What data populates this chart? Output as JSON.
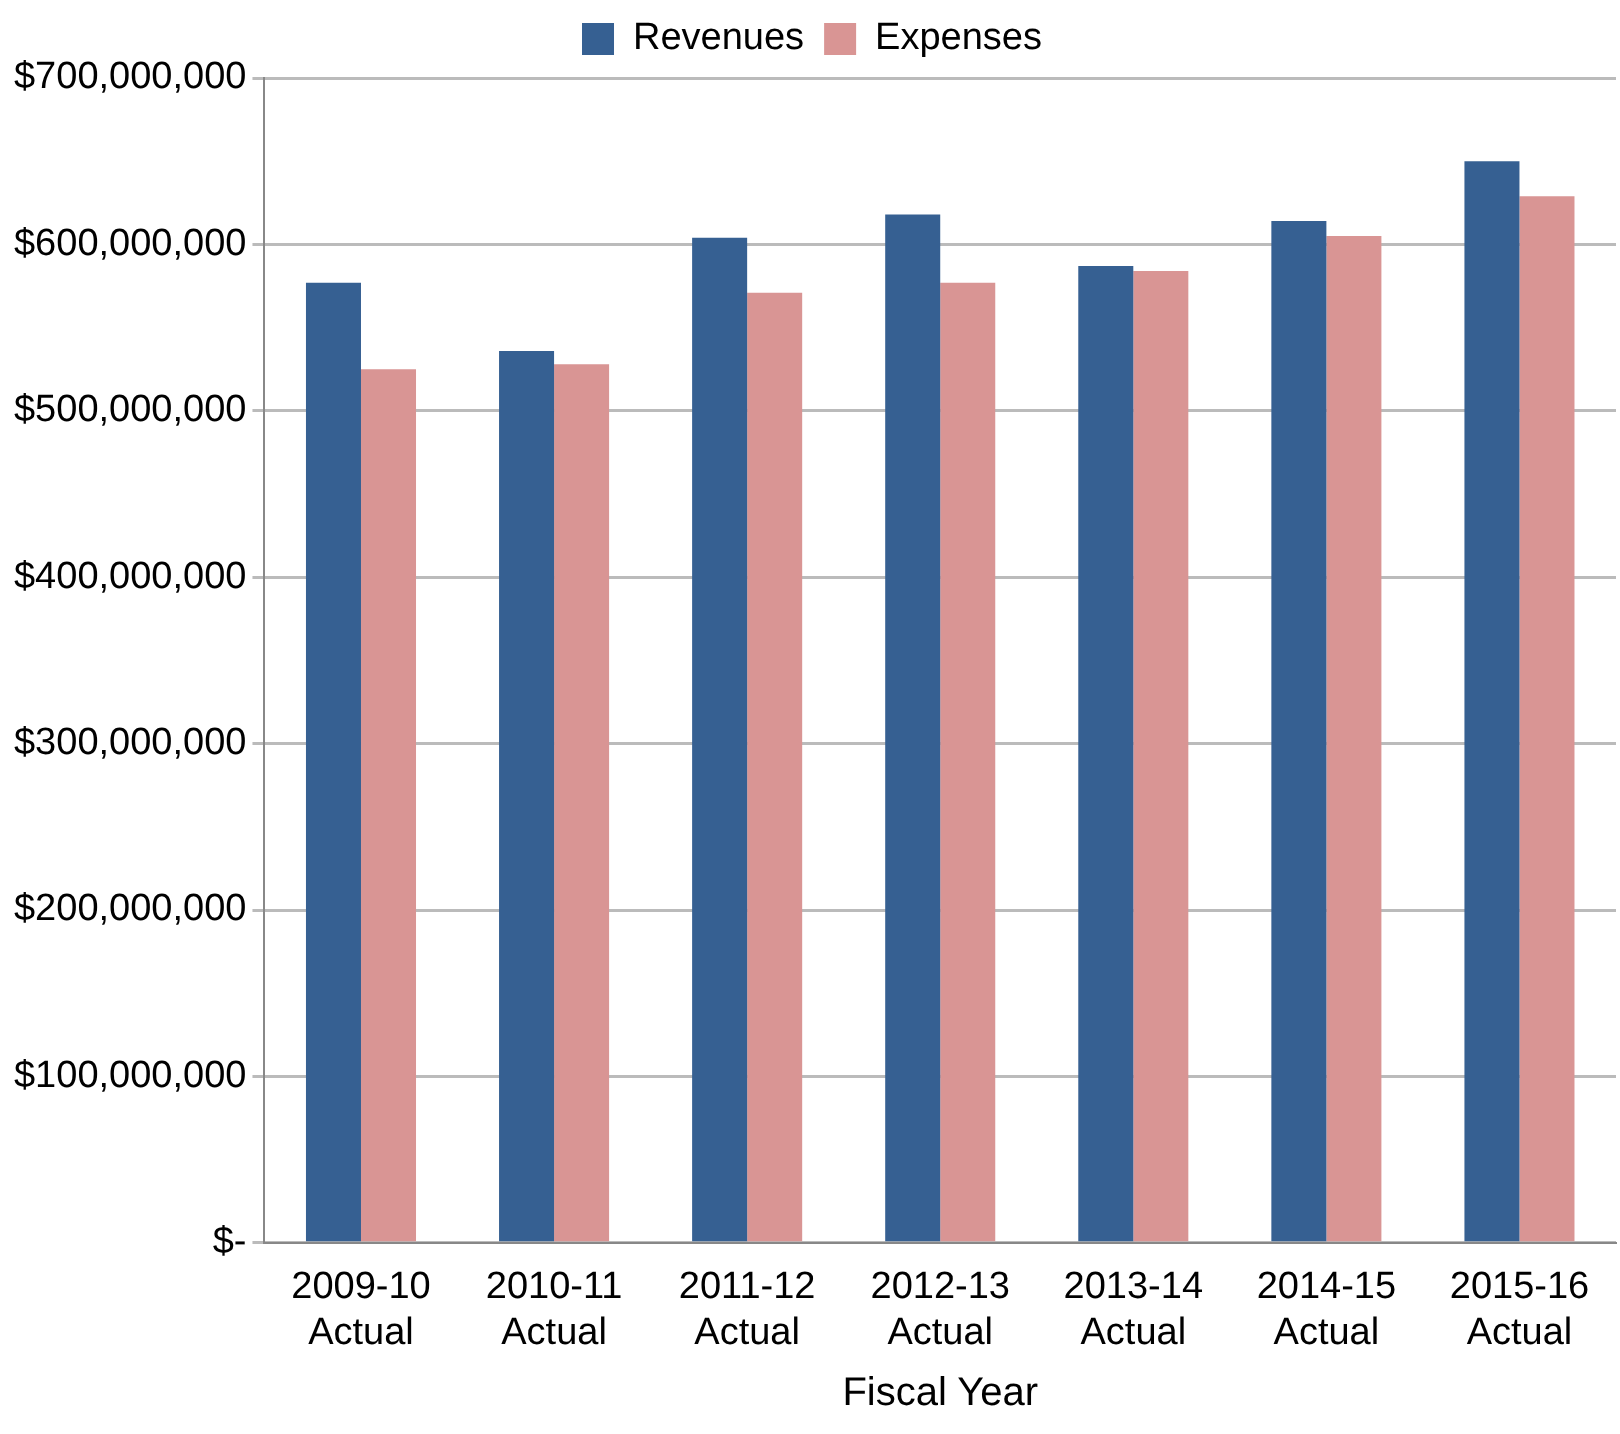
{
  "chart_data": {
    "type": "bar",
    "xlabel": "Fiscal Year",
    "categories": [
      "2009-10\nActual",
      "2010-11\nActual",
      "2011-12\nActual",
      "2012-13\nActual",
      "2013-14\nActual",
      "2014-15\nActual",
      "2015-16\nActual"
    ],
    "series": [
      {
        "name": "Revenues",
        "color": "#366092",
        "values": [
          577000000,
          536000000,
          604000000,
          618000000,
          587000000,
          614000000,
          650000000
        ]
      },
      {
        "name": "Expenses",
        "color": "#d99594",
        "values": [
          525000000,
          528000000,
          571000000,
          577000000,
          584000000,
          605000000,
          629000000
        ]
      }
    ],
    "ylim": [
      0,
      700000000
    ],
    "yticks": [
      {
        "value": 0,
        "label": "$-"
      },
      {
        "value": 100000000,
        "label": "$100,000,000"
      },
      {
        "value": 200000000,
        "label": "$200,000,000"
      },
      {
        "value": 300000000,
        "label": "$300,000,000"
      },
      {
        "value": 400000000,
        "label": "$400,000,000"
      },
      {
        "value": 500000000,
        "label": "$500,000,000"
      },
      {
        "value": 600000000,
        "label": "$600,000,000"
      },
      {
        "value": 700000000,
        "label": "$700,000,000"
      }
    ],
    "grid": "y",
    "legend": "top"
  }
}
